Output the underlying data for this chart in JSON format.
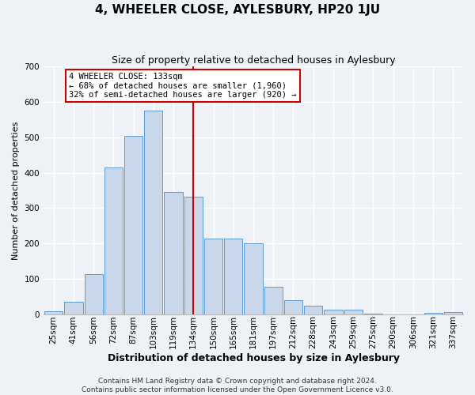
{
  "title": "4, WHEELER CLOSE, AYLESBURY, HP20 1JU",
  "subtitle": "Size of property relative to detached houses in Aylesbury",
  "xlabel": "Distribution of detached houses by size in Aylesbury",
  "ylabel": "Number of detached properties",
  "footer_line1": "Contains HM Land Registry data © Crown copyright and database right 2024.",
  "footer_line2": "Contains public sector information licensed under the Open Government Licence v3.0.",
  "bar_labels": [
    "25sqm",
    "41sqm",
    "56sqm",
    "72sqm",
    "87sqm",
    "103sqm",
    "119sqm",
    "134sqm",
    "150sqm",
    "165sqm",
    "181sqm",
    "197sqm",
    "212sqm",
    "228sqm",
    "243sqm",
    "259sqm",
    "275sqm",
    "290sqm",
    "306sqm",
    "321sqm",
    "337sqm"
  ],
  "bar_heights": [
    8,
    35,
    113,
    415,
    505,
    575,
    345,
    333,
    215,
    215,
    200,
    79,
    40,
    25,
    13,
    13,
    3,
    0,
    0,
    5,
    7
  ],
  "bar_color": "#c8d8ea",
  "bar_edgecolor": "#5b9bd5",
  "vline_index": 7,
  "vline_color": "#cc0000",
  "ylim": [
    0,
    700
  ],
  "yticks": [
    0,
    100,
    200,
    300,
    400,
    500,
    600,
    700
  ],
  "annotation_title": "4 WHEELER CLOSE: 133sqm",
  "annotation_line1": "← 68% of detached houses are smaller (1,960)",
  "annotation_line2": "32% of semi-detached houses are larger (920) →",
  "annotation_box_facecolor": "#ffffff",
  "annotation_box_edgecolor": "#cc0000",
  "background_color": "#eef2f7",
  "grid_color": "#ffffff",
  "title_fontsize": 11,
  "subtitle_fontsize": 9,
  "ylabel_fontsize": 8,
  "xlabel_fontsize": 9,
  "tick_fontsize": 7.5,
  "annotation_fontsize": 7.5,
  "footer_fontsize": 6.5
}
